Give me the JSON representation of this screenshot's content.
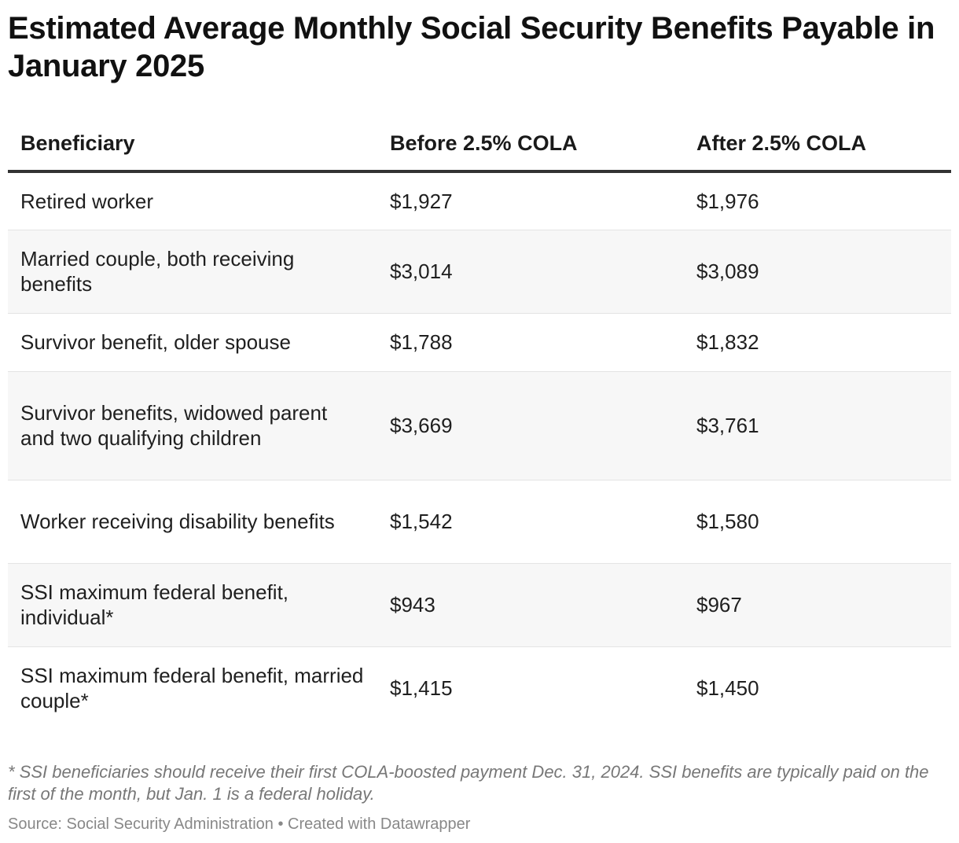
{
  "title": "Estimated Average Monthly Social Security Benefits Payable in January 2025",
  "table": {
    "columns": [
      "Beneficiary",
      "Before 2.5% COLA",
      "After 2.5% COLA"
    ],
    "rows": [
      {
        "beneficiary": "Retired worker",
        "before": "$1,927",
        "after": "$1,976"
      },
      {
        "beneficiary": "Married couple, both receiving benefits",
        "before": "$3,014",
        "after": "$3,089"
      },
      {
        "beneficiary": "Survivor benefit, older spouse",
        "before": "$1,788",
        "after": "$1,832"
      },
      {
        "beneficiary": "Survivor benefits, widowed parent and two qualifying children",
        "before": "$3,669",
        "after": "$3,761"
      },
      {
        "beneficiary": "Worker receiving disability benefits",
        "before": "$1,542",
        "after": "$1,580"
      },
      {
        "beneficiary": "SSI maximum federal benefit, individual*",
        "before": "$943",
        "after": "$967"
      },
      {
        "beneficiary": "SSI maximum federal benefit, married couple*",
        "before": "$1,415",
        "after": "$1,450"
      }
    ]
  },
  "notes": "* SSI beneficiaries should receive their first COLA-boosted payment Dec. 31, 2024. SSI benefits are typically paid on the first of the month, but Jan. 1 is a federal holiday.",
  "source": "Source: Social Security Administration • Created with Datawrapper",
  "chart_data": {
    "type": "table",
    "title": "Estimated Average Monthly Social Security Benefits Payable in January 2025",
    "columns": [
      "Beneficiary",
      "Before 2.5% COLA",
      "After 2.5% COLA"
    ],
    "categories": [
      "Retired worker",
      "Married couple, both receiving benefits",
      "Survivor benefit, older spouse",
      "Survivor benefits, widowed parent and two qualifying children",
      "Worker receiving disability benefits",
      "SSI maximum federal benefit, individual*",
      "SSI maximum federal benefit, married couple*"
    ],
    "series": [
      {
        "name": "Before 2.5% COLA",
        "values": [
          1927,
          3014,
          1788,
          3669,
          1542,
          943,
          1415
        ]
      },
      {
        "name": "After 2.5% COLA",
        "values": [
          1976,
          3089,
          1832,
          3761,
          1580,
          967,
          1450
        ]
      }
    ]
  }
}
